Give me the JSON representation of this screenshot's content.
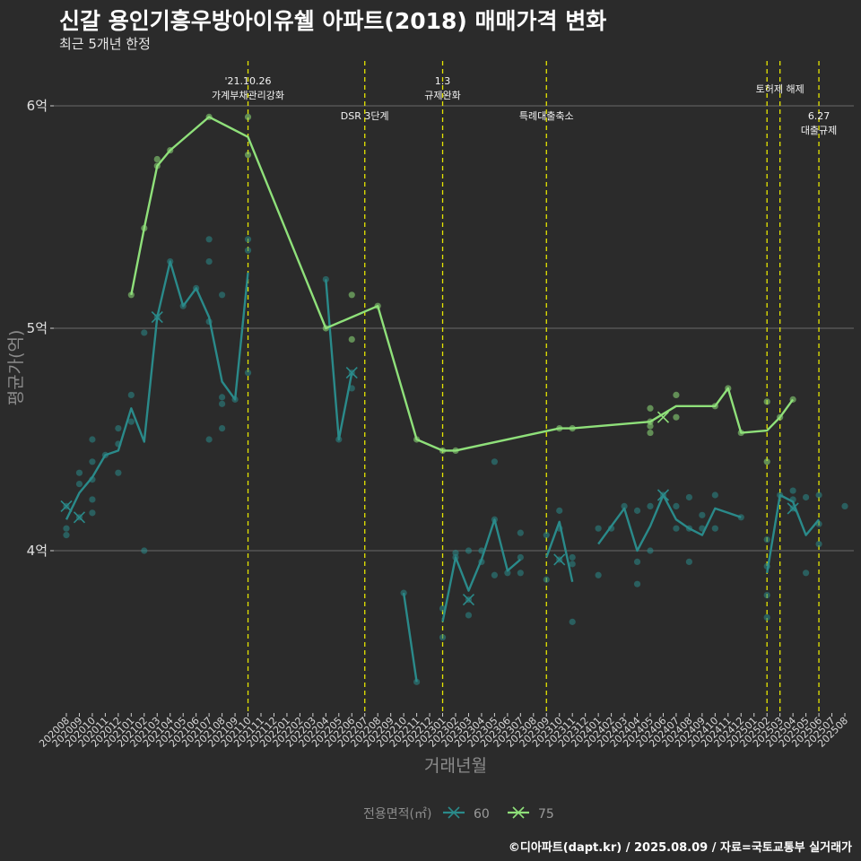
{
  "title": "신갈 용인기흥우방아이유쉘 아파트(2018) 매매가격 변화",
  "subtitle": "최근 5개년 한정",
  "caption": "©디아파트(dapt.kr) / 2025.08.09 / 자료=국토교통부 실거래가",
  "colors": {
    "s60": "#2a8a8a",
    "s75": "#8fe07a",
    "vline": "#e6e600",
    "grid": "#6a6a6a",
    "bg": "#2b2b2b"
  },
  "chart_data": {
    "type": "line",
    "xlabel": "거래년월",
    "ylabel": "평균가(억)",
    "ylim": [
      3.29,
      6.2
    ],
    "y_ticks": [
      {
        "value": 4,
        "label": "4억"
      },
      {
        "value": 5,
        "label": "5억"
      },
      {
        "value": 6,
        "label": "6억"
      }
    ],
    "x": [
      "202008",
      "202009",
      "202010",
      "202011",
      "202012",
      "202101",
      "202102",
      "202103",
      "202104",
      "202105",
      "202106",
      "202107",
      "202108",
      "202109",
      "202110",
      "202111",
      "202112",
      "202201",
      "202202",
      "202203",
      "202204",
      "202205",
      "202206",
      "202207",
      "202208",
      "202209",
      "202210",
      "202211",
      "202212",
      "202301",
      "202302",
      "202303",
      "202304",
      "202305",
      "202306",
      "202307",
      "202308",
      "202309",
      "202310",
      "202311",
      "202312",
      "202401",
      "202402",
      "202403",
      "202404",
      "202405",
      "202406",
      "202407",
      "202408",
      "202409",
      "202410",
      "202411",
      "202412",
      "202501",
      "202502",
      "202503",
      "202504",
      "202505",
      "202506",
      "202507",
      "202508"
    ],
    "legend_title": "전용면적(㎡)",
    "legend_position": "bottom",
    "series": [
      {
        "name": "60",
        "color": "#2a8a8a",
        "lines": [
          [
            [
              0,
              4.14
            ],
            [
              1,
              4.26
            ],
            [
              2,
              4.33
            ],
            [
              3,
              4.43
            ],
            [
              4,
              4.45
            ],
            [
              5,
              4.64
            ],
            [
              6,
              4.49
            ],
            [
              7,
              5.05
            ],
            [
              8,
              5.3
            ],
            [
              9,
              5.1
            ],
            [
              10,
              5.18
            ],
            [
              11,
              5.05
            ],
            [
              12,
              4.76
            ],
            [
              13,
              4.68
            ],
            [
              14,
              5.25
            ]
          ],
          [
            [
              20,
              5.22
            ],
            [
              21,
              4.5
            ],
            [
              22,
              4.8
            ]
          ],
          [
            [
              26,
              3.81
            ],
            [
              27,
              3.41
            ]
          ],
          [
            [
              29,
              3.68
            ],
            [
              30,
              3.97
            ],
            [
              31,
              3.82
            ],
            [
              32,
              3.96
            ],
            [
              33,
              4.14
            ],
            [
              34,
              3.91
            ],
            [
              35,
              3.96
            ]
          ],
          [
            [
              37,
              3.97
            ],
            [
              38,
              4.13
            ],
            [
              39,
              3.86
            ]
          ],
          [
            [
              41,
              4.03
            ],
            [
              42,
              4.11
            ],
            [
              43,
              4.19
            ],
            [
              44,
              4.0
            ],
            [
              45,
              4.11
            ],
            [
              46,
              4.25
            ],
            [
              47,
              4.14
            ],
            [
              48,
              4.1
            ],
            [
              49,
              4.07
            ],
            [
              50,
              4.19
            ],
            [
              51,
              4.17
            ],
            [
              52,
              4.15
            ]
          ],
          [
            [
              54,
              3.9
            ],
            [
              55,
              4.25
            ],
            [
              56,
              4.22
            ],
            [
              57,
              4.07
            ],
            [
              58,
              4.14
            ]
          ]
        ],
        "markers": [
          [
            0,
            4.2
          ],
          [
            1,
            4.15
          ],
          [
            7,
            5.05
          ],
          [
            22,
            4.8
          ],
          [
            31,
            3.78
          ],
          [
            38,
            3.96
          ],
          [
            46,
            4.25
          ],
          [
            56,
            4.19
          ]
        ],
        "points": [
          [
            0,
            4.07
          ],
          [
            0,
            4.1
          ],
          [
            0,
            4.2
          ],
          [
            1,
            4.15
          ],
          [
            1,
            4.3
          ],
          [
            1,
            4.35
          ],
          [
            2,
            4.17
          ],
          [
            2,
            4.23
          ],
          [
            2,
            4.32
          ],
          [
            2,
            4.4
          ],
          [
            2,
            4.5
          ],
          [
            3,
            4.43
          ],
          [
            4,
            4.35
          ],
          [
            4,
            4.48
          ],
          [
            4,
            4.55
          ],
          [
            5,
            4.58
          ],
          [
            5,
            4.7
          ],
          [
            6,
            4.0
          ],
          [
            6,
            4.98
          ],
          [
            7,
            5.05
          ],
          [
            8,
            5.3
          ],
          [
            9,
            5.1
          ],
          [
            10,
            5.18
          ],
          [
            11,
            4.5
          ],
          [
            11,
            5.03
          ],
          [
            11,
            5.3
          ],
          [
            11,
            5.4
          ],
          [
            12,
            4.55
          ],
          [
            12,
            4.66
          ],
          [
            12,
            4.69
          ],
          [
            12,
            5.15
          ],
          [
            13,
            4.68
          ],
          [
            14,
            4.8
          ],
          [
            14,
            5.35
          ],
          [
            14,
            5.4
          ],
          [
            20,
            5.22
          ],
          [
            21,
            4.5
          ],
          [
            22,
            4.73
          ],
          [
            22,
            4.8
          ],
          [
            26,
            3.81
          ],
          [
            27,
            3.41
          ],
          [
            29,
            3.61
          ],
          [
            29,
            3.74
          ],
          [
            30,
            3.97
          ],
          [
            30,
            3.99
          ],
          [
            31,
            3.71
          ],
          [
            31,
            3.78
          ],
          [
            31,
            4.0
          ],
          [
            32,
            3.95
          ],
          [
            32,
            4.0
          ],
          [
            33,
            3.89
          ],
          [
            33,
            4.14
          ],
          [
            33,
            4.4
          ],
          [
            34,
            3.9
          ],
          [
            35,
            3.9
          ],
          [
            35,
            3.97
          ],
          [
            35,
            4.08
          ],
          [
            37,
            3.87
          ],
          [
            37,
            4.07
          ],
          [
            38,
            3.96
          ],
          [
            38,
            4.1
          ],
          [
            38,
            4.18
          ],
          [
            39,
            3.68
          ],
          [
            39,
            3.94
          ],
          [
            39,
            3.97
          ],
          [
            41,
            3.89
          ],
          [
            41,
            4.1
          ],
          [
            42,
            4.1
          ],
          [
            43,
            4.2
          ],
          [
            44,
            3.85
          ],
          [
            44,
            3.95
          ],
          [
            44,
            4.18
          ],
          [
            45,
            4.0
          ],
          [
            45,
            4.2
          ],
          [
            46,
            4.25
          ],
          [
            47,
            4.1
          ],
          [
            47,
            4.2
          ],
          [
            48,
            3.95
          ],
          [
            48,
            4.1
          ],
          [
            48,
            4.24
          ],
          [
            49,
            4.1
          ],
          [
            49,
            4.16
          ],
          [
            50,
            4.1
          ],
          [
            50,
            4.25
          ],
          [
            52,
            4.15
          ],
          [
            54,
            3.7
          ],
          [
            54,
            3.8
          ],
          [
            54,
            3.93
          ],
          [
            54,
            4.05
          ],
          [
            55,
            4.25
          ],
          [
            56,
            4.19
          ],
          [
            56,
            4.23
          ],
          [
            56,
            4.27
          ],
          [
            57,
            3.9
          ],
          [
            57,
            4.24
          ],
          [
            58,
            4.03
          ],
          [
            58,
            4.12
          ],
          [
            58,
            4.25
          ],
          [
            60,
            4.2
          ]
        ]
      },
      {
        "name": "75",
        "color": "#8fe07a",
        "lines": [
          [
            [
              5,
              5.15
            ],
            [
              6,
              5.45
            ],
            [
              7,
              5.73
            ],
            [
              8,
              5.8
            ],
            [
              11,
              5.95
            ],
            [
              14,
              5.86
            ],
            [
              20,
              5.0
            ],
            [
              24,
              5.1
            ],
            [
              27,
              4.5
            ],
            [
              29,
              4.45
            ],
            [
              30,
              4.45
            ],
            [
              38,
              4.55
            ],
            [
              39,
              4.55
            ],
            [
              45,
              4.58
            ],
            [
              47,
              4.65
            ],
            [
              50,
              4.65
            ],
            [
              51,
              4.73
            ],
            [
              52,
              4.53
            ],
            [
              54,
              4.54
            ],
            [
              55,
              4.6
            ],
            [
              56,
              4.68
            ]
          ]
        ],
        "markers": [
          [
            46,
            4.6
          ]
        ],
        "points": [
          [
            5,
            5.15
          ],
          [
            6,
            5.45
          ],
          [
            7,
            5.73
          ],
          [
            7,
            5.76
          ],
          [
            8,
            5.8
          ],
          [
            11,
            5.95
          ],
          [
            14,
            5.78
          ],
          [
            14,
            5.95
          ],
          [
            20,
            5.0
          ],
          [
            22,
            4.95
          ],
          [
            22,
            5.15
          ],
          [
            24,
            5.1
          ],
          [
            27,
            4.5
          ],
          [
            29,
            4.45
          ],
          [
            30,
            4.45
          ],
          [
            38,
            4.55
          ],
          [
            39,
            4.55
          ],
          [
            45,
            4.53
          ],
          [
            45,
            4.56
          ],
          [
            45,
            4.58
          ],
          [
            45,
            4.64
          ],
          [
            47,
            4.6
          ],
          [
            47,
            4.7
          ],
          [
            50,
            4.65
          ],
          [
            51,
            4.73
          ],
          [
            52,
            4.53
          ],
          [
            54,
            4.4
          ],
          [
            54,
            4.67
          ],
          [
            55,
            4.6
          ],
          [
            56,
            4.68
          ]
        ]
      }
    ],
    "vlines": [
      {
        "x": 14,
        "label": [
          "'21.10.26",
          "가계부채관리강화"
        ],
        "level": "high"
      },
      {
        "x": 23,
        "label": [
          "DSR 3단계"
        ],
        "level": "low"
      },
      {
        "x": 29,
        "label": [
          "1.3",
          "규제완화"
        ],
        "level": "high"
      },
      {
        "x": 37,
        "label": [
          "특례대출축소"
        ],
        "level": "low"
      },
      {
        "x": 54,
        "label": [],
        "level": "high"
      },
      {
        "x": 55,
        "label": [
          "토허제 해제"
        ],
        "level": "mid"
      },
      {
        "x": 58,
        "label": [
          "6.27",
          "대출규제"
        ],
        "level": "low"
      }
    ]
  }
}
